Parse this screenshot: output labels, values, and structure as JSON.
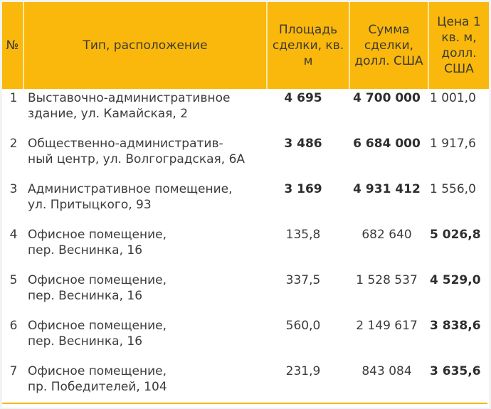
{
  "table": {
    "headers": {
      "num": "№",
      "type": "Тип, расположение",
      "area": "Площадь сделки, кв. м",
      "sum": "Сумма сделки, долл. США",
      "price": "Цена 1 кв. м, долл. США"
    },
    "rows": [
      {
        "num": "1",
        "type": "Выставочно-административное\nздание, ул. Камайская, 2",
        "area": "4 695",
        "sum": "4 700 000",
        "price": "1 001,0"
      },
      {
        "num": "2",
        "type": "Общественно-административ-\nный центр, ул. Волгоградская, 6А",
        "area": "3 486",
        "sum": "6 684 000",
        "price": "1 917,6"
      },
      {
        "num": "3",
        "type": "Административное помещение,\nул. Притыцкого, 93",
        "area": "3 169",
        "sum": "4 931 412",
        "price": "1 556,0"
      },
      {
        "num": "4",
        "type": "Офисное помещение,\nпер. Веснинка, 16",
        "area": "135,8",
        "sum": "682 640",
        "price": "5 026,8"
      },
      {
        "num": "5",
        "type": "Офисное помещение,\nпер. Веснинка, 16",
        "area": "337,5",
        "sum": "1 528 537",
        "price": "4 529,0"
      },
      {
        "num": "6",
        "type": "Офисное помещение,\nпер. Веснинка, 16",
        "area": "560,0",
        "sum": "2 149 617",
        "price": "3 838,6"
      },
      {
        "num": "7",
        "type": "Офисное помещение,\nпр. Победителей, 104",
        "area": "231,9",
        "sum": "843 084",
        "price": "3 635,6"
      }
    ]
  },
  "colors": {
    "header_bg": "#f9b80b",
    "text": "#3c3c3c",
    "accent_line": "#f9b80b"
  }
}
